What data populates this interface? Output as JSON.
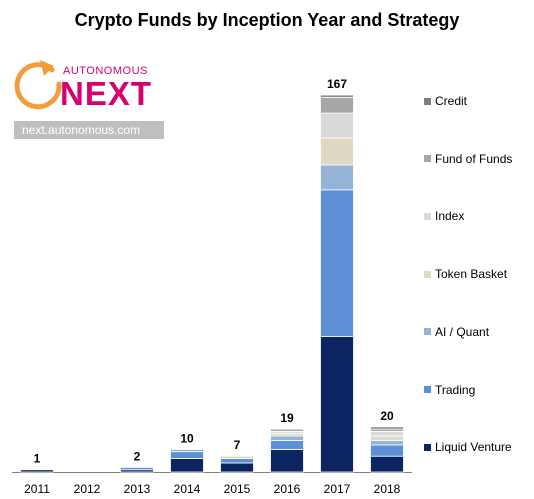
{
  "title": "Crypto Funds by Inception Year and Strategy",
  "logo": {
    "small_text": "AUTONOMOUS",
    "big_text": "NEXT",
    "url": "next.autonomous.com",
    "color": "#d6006f",
    "ring_color": "#f39c3c"
  },
  "chart_data": {
    "type": "bar",
    "stacked": true,
    "categories": [
      "2011",
      "2012",
      "2013",
      "2014",
      "2015",
      "2016",
      "2017",
      "2018"
    ],
    "totals": [
      1,
      0,
      2,
      10,
      7,
      19,
      167,
      20
    ],
    "total_labels": [
      "1",
      "",
      "2",
      "10",
      "7",
      "19",
      "167",
      "20"
    ],
    "series": [
      {
        "name": "Liquid Venture",
        "color": "#0c2461",
        "values": [
          1,
          0,
          1,
          6,
          4,
          10,
          60,
          7
        ]
      },
      {
        "name": "Trading",
        "color": "#5b8fd6",
        "values": [
          0,
          0,
          1,
          3,
          2,
          4,
          65,
          5
        ]
      },
      {
        "name": "AI / Quant",
        "color": "#95b3d7",
        "values": [
          0,
          0,
          0,
          1,
          0,
          2,
          11,
          2
        ]
      },
      {
        "name": "Token Basket",
        "color": "#ddd9c4",
        "values": [
          0,
          0,
          0,
          0,
          1,
          1,
          12,
          2
        ]
      },
      {
        "name": "Index",
        "color": "#d9d9d9",
        "values": [
          0,
          0,
          0,
          0,
          0,
          1,
          11,
          2
        ]
      },
      {
        "name": "Fund of Funds",
        "color": "#a6a6a6",
        "values": [
          0,
          0,
          0,
          0,
          0,
          1,
          7,
          1
        ]
      },
      {
        "name": "Credit",
        "color": "#7f7f7f",
        "values": [
          0,
          0,
          0,
          0,
          0,
          0,
          1,
          1
        ]
      }
    ],
    "ylim": [
      0,
      175
    ],
    "grid": false,
    "legend_position": "right",
    "legend_order": [
      "Credit",
      "Fund of Funds",
      "Index",
      "Token Basket",
      "AI / Quant",
      "Trading",
      "Liquid Venture"
    ]
  }
}
